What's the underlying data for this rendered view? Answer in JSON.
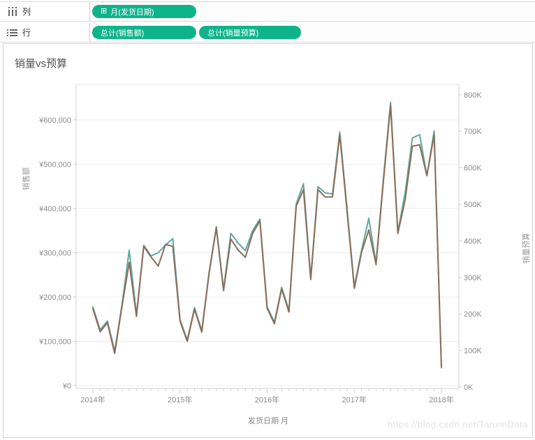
{
  "shelves": {
    "columns": {
      "label": "列",
      "pills": [
        {
          "label": "月(发货日期)",
          "icon_glyph": "⊞"
        }
      ]
    },
    "rows": {
      "label": "行",
      "pills": [
        {
          "label": "总计(销售额)"
        },
        {
          "label": "总计(销量预算)"
        }
      ]
    }
  },
  "colors": {
    "pill_green": "#0fb389",
    "sales_line": "#5fa8a1",
    "budget_line": "#8c6d5a",
    "grid": "#ededed",
    "axis_line": "#d4d4d4",
    "tick_text": "#8a8a8a"
  },
  "chart": {
    "title": "销量vs预算",
    "x_axis_title": "发货日期 月",
    "left_axis_title": "销售额",
    "right_axis_title": "销量预算",
    "watermark": "https://blog.csdn.net/TanxinData"
  },
  "chart_data": {
    "type": "line",
    "title": "销量vs预算",
    "grid": "horizontal",
    "legend_position": "none",
    "x": [
      "2014-01",
      "2014-02",
      "2014-03",
      "2014-04",
      "2014-05",
      "2014-06",
      "2014-07",
      "2014-08",
      "2014-09",
      "2014-10",
      "2014-11",
      "2014-12",
      "2015-01",
      "2015-02",
      "2015-03",
      "2015-04",
      "2015-05",
      "2015-06",
      "2015-07",
      "2015-08",
      "2015-09",
      "2015-10",
      "2015-11",
      "2015-12",
      "2016-01",
      "2016-02",
      "2016-03",
      "2016-04",
      "2016-05",
      "2016-06",
      "2016-07",
      "2016-08",
      "2016-09",
      "2016-10",
      "2016-11",
      "2016-12",
      "2017-01",
      "2017-02",
      "2017-03",
      "2017-04",
      "2017-05",
      "2017-06",
      "2017-07",
      "2017-08",
      "2017-09",
      "2017-10",
      "2017-11",
      "2017-12",
      "2018-01"
    ],
    "x_tick_labels": [
      "2014年",
      "2015年",
      "2016年",
      "2017年",
      "2018年"
    ],
    "series": [
      {
        "name": "总计(销售额)",
        "axis": "left",
        "color": "#5fa8a1",
        "values": [
          178000,
          126000,
          146000,
          78000,
          182000,
          306000,
          160000,
          317000,
          293000,
          300000,
          318000,
          332000,
          149000,
          103000,
          176000,
          124000,
          255000,
          359000,
          218000,
          344000,
          322000,
          305000,
          350000,
          376000,
          178000,
          143000,
          222000,
          170000,
          410000,
          456000,
          243000,
          449000,
          435000,
          433000,
          573000,
          400000,
          224000,
          305000,
          378000,
          277000,
          465000,
          640000,
          347000,
          435000,
          559000,
          567000,
          474000,
          575000,
          40000
        ]
      },
      {
        "name": "总计(销量预算)",
        "axis": "right",
        "color": "#8c6d5a",
        "values": [
          214000,
          151000,
          176000,
          92000,
          220000,
          341000,
          193000,
          385000,
          356000,
          331000,
          390000,
          385000,
          180000,
          125000,
          213000,
          150000,
          310000,
          435000,
          264000,
          405000,
          375000,
          355000,
          420000,
          455000,
          215000,
          173000,
          268000,
          205000,
          495000,
          540000,
          294000,
          540000,
          520000,
          520000,
          690000,
          480000,
          270000,
          368000,
          430000,
          335000,
          560000,
          770000,
          420000,
          511000,
          659000,
          663000,
          578000,
          690000,
          55000
        ]
      }
    ],
    "y_left": {
      "label": "销售额",
      "min": 0,
      "max": 600000,
      "tick_step": 100000,
      "tick_labels": [
        "¥0",
        "¥100,000",
        "¥200,000",
        "¥300,000",
        "¥400,000",
        "¥500,000",
        "¥600,000"
      ]
    },
    "y_right": {
      "label": "销量预算",
      "min": 0,
      "max": 800000,
      "tick_step": 100000,
      "tick_labels": [
        "0K",
        "100K",
        "200K",
        "300K",
        "400K",
        "500K",
        "600K",
        "700K",
        "800K"
      ]
    }
  }
}
